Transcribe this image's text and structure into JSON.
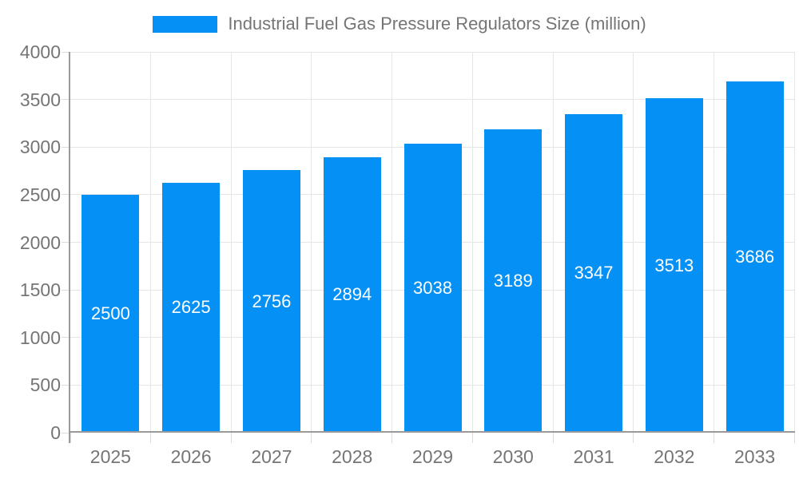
{
  "legend": {
    "label": "Industrial Fuel Gas Pressure Regulators Size (million)"
  },
  "chart_data": {
    "type": "bar",
    "title": "Industrial Fuel Gas Pressure Regulators Size (million)",
    "categories": [
      "2025",
      "2026",
      "2027",
      "2028",
      "2029",
      "2030",
      "2031",
      "2032",
      "2033"
    ],
    "values": [
      2500,
      2625,
      2756,
      2894,
      3038,
      3189,
      3347,
      3513,
      3686
    ],
    "xlabel": "",
    "ylabel": "",
    "ylim": [
      0,
      4000
    ],
    "yticks": [
      0,
      500,
      1000,
      1500,
      2000,
      2500,
      3000,
      3500,
      4000
    ],
    "grid": true,
    "legend_position": "top",
    "value_labels": "inside-center"
  },
  "colors": {
    "bar": "#0590f5",
    "grid": "#e6e6e6",
    "axis": "#9a9a9a",
    "tick": "#dcdcdc",
    "axis_text": "#757575",
    "value_text": "#ffffff"
  }
}
